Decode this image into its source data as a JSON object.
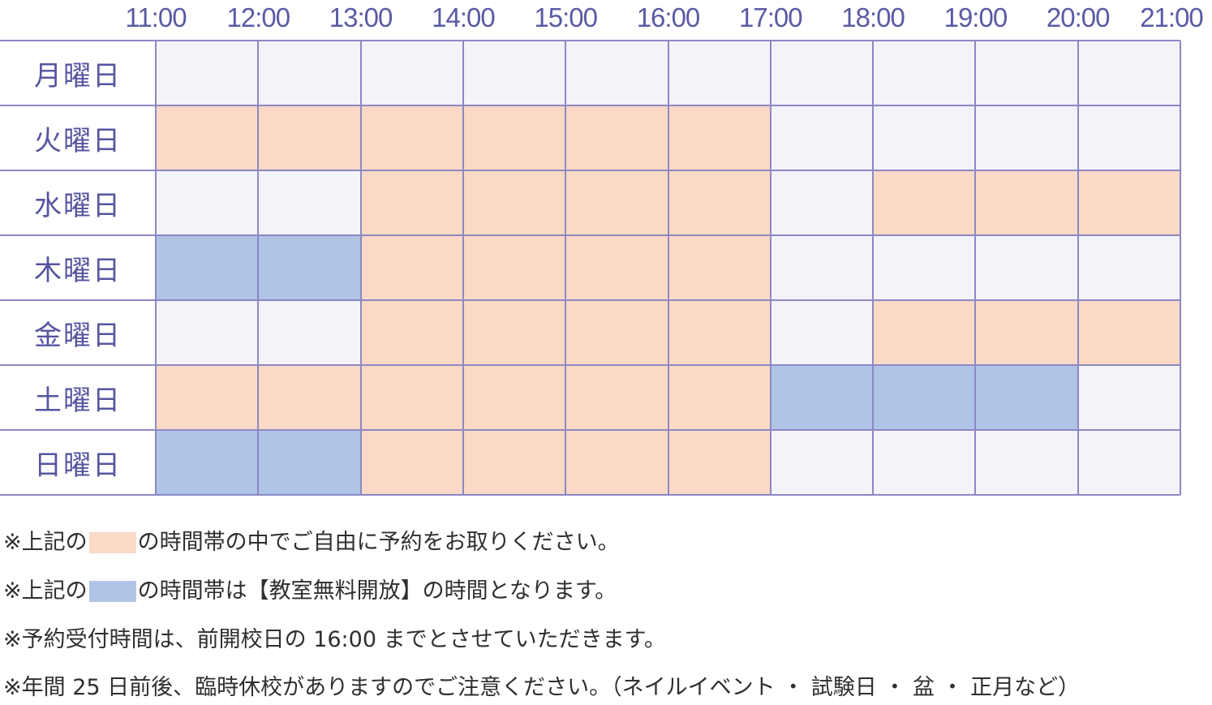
{
  "times": [
    "11:00",
    "12:00",
    "13:00",
    "14:00",
    "15:00",
    "16:00",
    "17:00",
    "18:00",
    "19:00",
    "20:00",
    "21:00"
  ],
  "colors": {
    "free": "#f4f3fa",
    "reservable": "#fad9c6",
    "open_class": "#b0c4e6",
    "grid_line": "#8c88c4"
  },
  "days": [
    {
      "label": "月曜日",
      "slots": [
        "free",
        "free",
        "free",
        "free",
        "free",
        "free",
        "free",
        "free",
        "free",
        "free"
      ]
    },
    {
      "label": "火曜日",
      "slots": [
        "reservable",
        "reservable",
        "reservable",
        "reservable",
        "reservable",
        "reservable",
        "free",
        "free",
        "free",
        "free"
      ]
    },
    {
      "label": "水曜日",
      "slots": [
        "free",
        "free",
        "reservable",
        "reservable",
        "reservable",
        "reservable",
        "free",
        "reservable",
        "reservable",
        "reservable"
      ]
    },
    {
      "label": "木曜日",
      "slots": [
        "open_class",
        "open_class",
        "reservable",
        "reservable",
        "reservable",
        "reservable",
        "free",
        "free",
        "free",
        "free"
      ]
    },
    {
      "label": "金曜日",
      "slots": [
        "free",
        "free",
        "reservable",
        "reservable",
        "reservable",
        "reservable",
        "free",
        "reservable",
        "reservable",
        "reservable"
      ]
    },
    {
      "label": "土曜日",
      "slots": [
        "reservable",
        "reservable",
        "reservable",
        "reservable",
        "reservable",
        "reservable",
        "open_class",
        "open_class",
        "open_class",
        "free"
      ]
    },
    {
      "label": "日曜日",
      "slots": [
        "open_class",
        "open_class",
        "reservable",
        "reservable",
        "reservable",
        "reservable",
        "free",
        "free",
        "free",
        "free"
      ]
    }
  ],
  "notes": [
    {
      "prefix": "※上記の",
      "swatch": "reservable",
      "suffix": "の時間帯の中でご自由に予約をお取りください。"
    },
    {
      "prefix": "※上記の",
      "swatch": "open_class",
      "suffix": "の時間帯は【教室無料開放】の時間となります。"
    },
    {
      "prefix": "※予約受付時間は、前開校日の 16:00 までとさせていただきます。",
      "swatch": "",
      "suffix": ""
    },
    {
      "prefix": "※年間 25 日前後、臨時休校がありますのでご注意ください。（ネイルイベント ・ 試験日 ・ 盆 ・ 正月など）",
      "swatch": "",
      "suffix": ""
    }
  ]
}
